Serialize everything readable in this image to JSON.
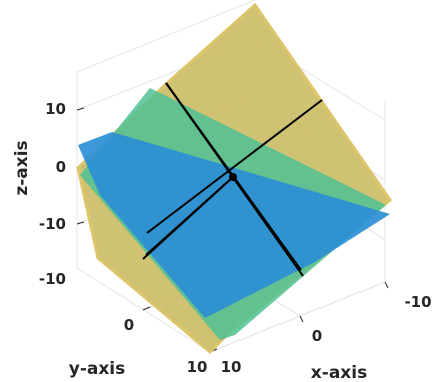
{
  "chart_data": {
    "type": "surface3d",
    "xlabel": "x-axis",
    "ylabel": "y-axis",
    "zlabel": "z-axis",
    "xlim": [
      -10,
      10
    ],
    "ylim": [
      -10,
      10
    ],
    "zlim": [
      -10,
      10
    ],
    "x_ticks": [
      "-10",
      "0",
      "10"
    ],
    "y_ticks": [
      "0",
      "10"
    ],
    "z_ticks": [
      "10",
      "0",
      "-10",
      "-10"
    ],
    "grid": true,
    "planes": [
      {
        "color": "#c8b75a"
      },
      {
        "color": "#4fc193"
      },
      {
        "color": "#2b8fd6"
      }
    ],
    "intersection_lines": 3,
    "intersection_point": [
      0,
      0,
      0
    ]
  }
}
